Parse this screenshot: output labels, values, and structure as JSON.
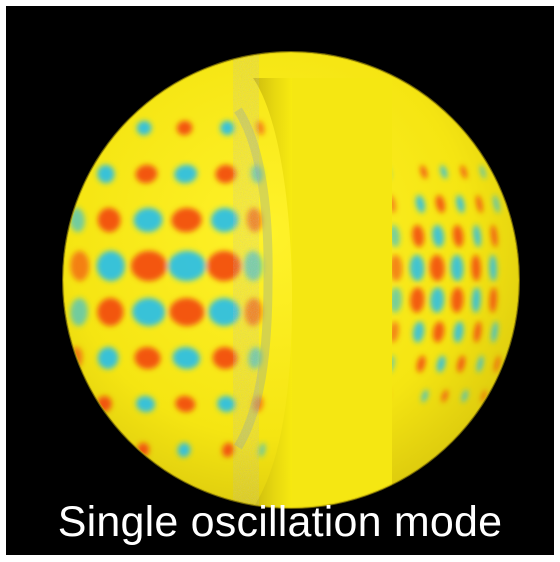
{
  "caption": "Single oscillation mode",
  "colors": {
    "background": "#000000",
    "sphere": "#f7ea10",
    "cutaway": "#d5c712",
    "positive": "#f24a12",
    "negative": "#28bfe8",
    "caption": "#ffffff",
    "border": "#ffffff"
  },
  "illustration": {
    "subject": "sphere",
    "pattern": "oscillation mode nodes",
    "cutaway": true
  }
}
